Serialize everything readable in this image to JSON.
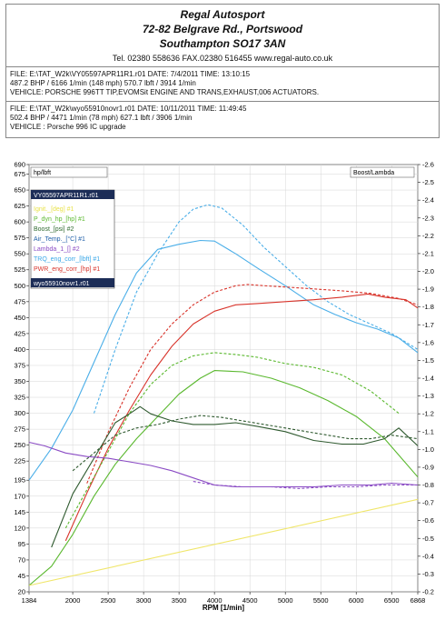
{
  "header": {
    "company_lines": [
      "Regal Autosport",
      "72-82 Belgrave Rd., Portswood",
      "Southampton SO17 3AN"
    ],
    "contact": "Tel. 02380 558636      FAX.02380 516455      www.regal-auto.co.uk",
    "run1": {
      "file": "FILE: E:\\TAT_W2k\\VY05597APR11R1.r01  DATE: 7/4/2011  TIME: 13:10:15",
      "result": "487.2 BHP / 6166 1/min (148 mph)    570.7 lbft / 3914 1/min",
      "vehicle": "VEHICLE: PORSCHE 996TT TIP,EVOMSit ENGINE AND TRANS,EXHAUST,006 ACTUATORS."
    },
    "run2": {
      "file": "FILE: E:\\TAT_W2k\\wyo55910novr1.r01  DATE: 10/11/2011  TIME: 11:49:45",
      "result": "502.4 BHP / 4471 1/min (78 mph)    627.1 lbft / 3906 1/min",
      "vehicle": "VEHICLE : Porsche 996 IC upgrade"
    }
  },
  "chart_data": {
    "type": "line",
    "xlabel": "RPM  [1/min]",
    "left_axis_title": "hp/lbft",
    "right_axis_title": "Boost/Lambda",
    "xlim": [
      1384,
      6868
    ],
    "ylim": [
      20,
      690
    ],
    "ylim_right": [
      0.2,
      2.6
    ],
    "x_ticks": [
      "1384",
      "2000",
      "2500",
      "3000",
      "3500",
      "4000",
      "4500",
      "5000",
      "5500",
      "6000",
      "6500",
      "6868"
    ],
    "y_ticks": [
      20,
      45,
      70,
      95,
      120,
      145,
      170,
      195,
      225,
      250,
      275,
      300,
      325,
      350,
      375,
      400,
      425,
      450,
      475,
      500,
      525,
      550,
      575,
      600,
      625,
      650,
      675,
      690
    ],
    "y_right_ticks": [
      0.2,
      0.3,
      0.4,
      0.5,
      0.6,
      0.7,
      0.8,
      0.9,
      1.0,
      1.1,
      1.2,
      1.3,
      1.4,
      1.5,
      1.6,
      1.7,
      1.8,
      1.9,
      2.0,
      2.1,
      2.2,
      2.3,
      2.4,
      2.5,
      2.6
    ],
    "legend": {
      "file_label": "VY05597APR11R1.r01",
      "items": [
        {
          "label": "Ignit._[deg] #1",
          "color": "#e8e24a"
        },
        {
          "label": "P_dyn_hp_[hp] #1",
          "color": "#5ab82e"
        },
        {
          "label": "Boost_[psi] #2",
          "color": "#2f6a2f"
        },
        {
          "label": "Air_Temp._[°C] #1",
          "color": "#1f5fa8"
        },
        {
          "label": "Lambda_1_[] #2",
          "color": "#8a4bc4"
        },
        {
          "label": "TRQ_eng_corr_[lbft] #1",
          "color": "#3aa8e8"
        },
        {
          "label": "PWR_eng_corr_[hp] #1",
          "color": "#d8332a"
        }
      ],
      "second_file_label": "wyo55910novr1.r01"
    },
    "series": [
      {
        "name": "TRQ_eng_corr_[lbft] #1",
        "axis": "left",
        "color": "#4aaee8",
        "style": "solid",
        "x": [
          1384,
          1700,
          2000,
          2300,
          2600,
          2900,
          3200,
          3500,
          3800,
          4000,
          4300,
          4600,
          5000,
          5400,
          5700,
          6000,
          6300,
          6600,
          6868
        ],
        "y": [
          195,
          245,
          305,
          380,
          455,
          520,
          557,
          565,
          571,
          570,
          550,
          528,
          500,
          470,
          455,
          442,
          432,
          418,
          395
        ]
      },
      {
        "name": "TRQ_eng_corr_[lbft] wyo55910novr1",
        "axis": "left",
        "color": "#4aaee8",
        "style": "dashed",
        "x": [
          2300,
          2600,
          2900,
          3200,
          3500,
          3700,
          3906,
          4100,
          4400,
          4700,
          5000,
          5300,
          5600,
          5900,
          6200,
          6500,
          6868
        ],
        "y": [
          300,
          400,
          490,
          550,
          600,
          620,
          627,
          622,
          595,
          560,
          530,
          500,
          475,
          455,
          440,
          425,
          400
        ]
      },
      {
        "name": "PWR_eng_corr_[hp] #1",
        "axis": "left",
        "color": "#d8332a",
        "style": "solid",
        "x": [
          1900,
          2200,
          2500,
          2800,
          3100,
          3400,
          3700,
          4000,
          4300,
          4600,
          5000,
          5400,
          5800,
          6166,
          6400,
          6700,
          6868
        ],
        "y": [
          100,
          175,
          245,
          305,
          360,
          405,
          440,
          460,
          470,
          472,
          475,
          478,
          482,
          487,
          482,
          478,
          465
        ]
      },
      {
        "name": "PWR_eng_corr_[hp] wyo55910novr1",
        "axis": "left",
        "color": "#d8332a",
        "style": "dashed",
        "x": [
          2200,
          2500,
          2800,
          3100,
          3400,
          3700,
          4000,
          4300,
          4471,
          4700,
          5000,
          5400,
          5800,
          6200,
          6600,
          6868
        ],
        "y": [
          190,
          270,
          340,
          400,
          440,
          470,
          490,
          500,
          502,
          500,
          498,
          495,
          492,
          488,
          480,
          470
        ]
      },
      {
        "name": "P_dyn_hp_[hp] #1",
        "axis": "left",
        "color": "#5ab82e",
        "style": "solid",
        "x": [
          1384,
          1700,
          2000,
          2300,
          2600,
          2900,
          3200,
          3500,
          3800,
          4000,
          4400,
          4800,
          5200,
          5600,
          6000,
          6400,
          6868
        ],
        "y": [
          30,
          60,
          110,
          170,
          220,
          260,
          295,
          330,
          355,
          367,
          365,
          355,
          340,
          320,
          295,
          260,
          200
        ]
      },
      {
        "name": "P_dyn_hp_[hp] wyo55910novr1",
        "axis": "left",
        "color": "#5ab82e",
        "style": "dashed",
        "x": [
          1900,
          2200,
          2500,
          2800,
          3100,
          3400,
          3700,
          4000,
          4300,
          4600,
          5000,
          5400,
          5800,
          6200,
          6600
        ],
        "y": [
          120,
          180,
          240,
          300,
          345,
          375,
          390,
          395,
          392,
          388,
          378,
          372,
          360,
          335,
          300
        ]
      },
      {
        "name": "Boost_[psi] #2",
        "axis": "right",
        "color": "#2f5a2f",
        "style": "solid",
        "x": [
          1700,
          2000,
          2300,
          2600,
          2800,
          2950,
          3100,
          3400,
          3700,
          4000,
          4300,
          4600,
          5000,
          5400,
          5800,
          6100,
          6400,
          6600,
          6868
        ],
        "y": [
          0.45,
          0.75,
          0.95,
          1.15,
          1.2,
          1.24,
          1.2,
          1.16,
          1.14,
          1.14,
          1.15,
          1.13,
          1.1,
          1.05,
          1.03,
          1.03,
          1.06,
          1.12,
          1.02
        ]
      },
      {
        "name": "Boost_[psi] wyo55910novr1",
        "axis": "right",
        "color": "#2f5a2f",
        "style": "dashed",
        "x": [
          2000,
          2300,
          2600,
          2900,
          3200,
          3500,
          3800,
          4100,
          4400,
          4700,
          5000,
          5300,
          5600,
          5900,
          6200,
          6500,
          6868
        ],
        "y": [
          0.88,
          0.98,
          1.08,
          1.12,
          1.14,
          1.17,
          1.19,
          1.18,
          1.16,
          1.14,
          1.12,
          1.1,
          1.08,
          1.06,
          1.06,
          1.08,
          1.06
        ]
      },
      {
        "name": "Lambda_1_[] #2",
        "axis": "right",
        "color": "#8a4bc4",
        "style": "solid",
        "x": [
          1384,
          1600,
          1900,
          2200,
          2500,
          2800,
          3100,
          3400,
          3700,
          4000,
          4300,
          4600,
          5000,
          5400,
          5800,
          6200,
          6500,
          6868
        ],
        "y": [
          1.04,
          1.02,
          0.98,
          0.96,
          0.95,
          0.93,
          0.91,
          0.88,
          0.84,
          0.8,
          0.79,
          0.79,
          0.79,
          0.79,
          0.8,
          0.8,
          0.81,
          0.8
        ]
      },
      {
        "name": "Lambda_1_[] wyo55910novr1",
        "axis": "right",
        "color": "#8a4bc4",
        "style": "dashed",
        "x": [
          3700,
          4000,
          4400,
          4800,
          5200,
          5600,
          6000,
          6400,
          6868
        ],
        "y": [
          0.82,
          0.8,
          0.79,
          0.79,
          0.78,
          0.79,
          0.79,
          0.8,
          0.8
        ]
      },
      {
        "name": "Ignit._[deg] #1",
        "axis": "left",
        "color": "#f0e66a",
        "style": "solid",
        "x": [
          1384,
          6868
        ],
        "y": [
          30,
          165
        ]
      }
    ]
  }
}
